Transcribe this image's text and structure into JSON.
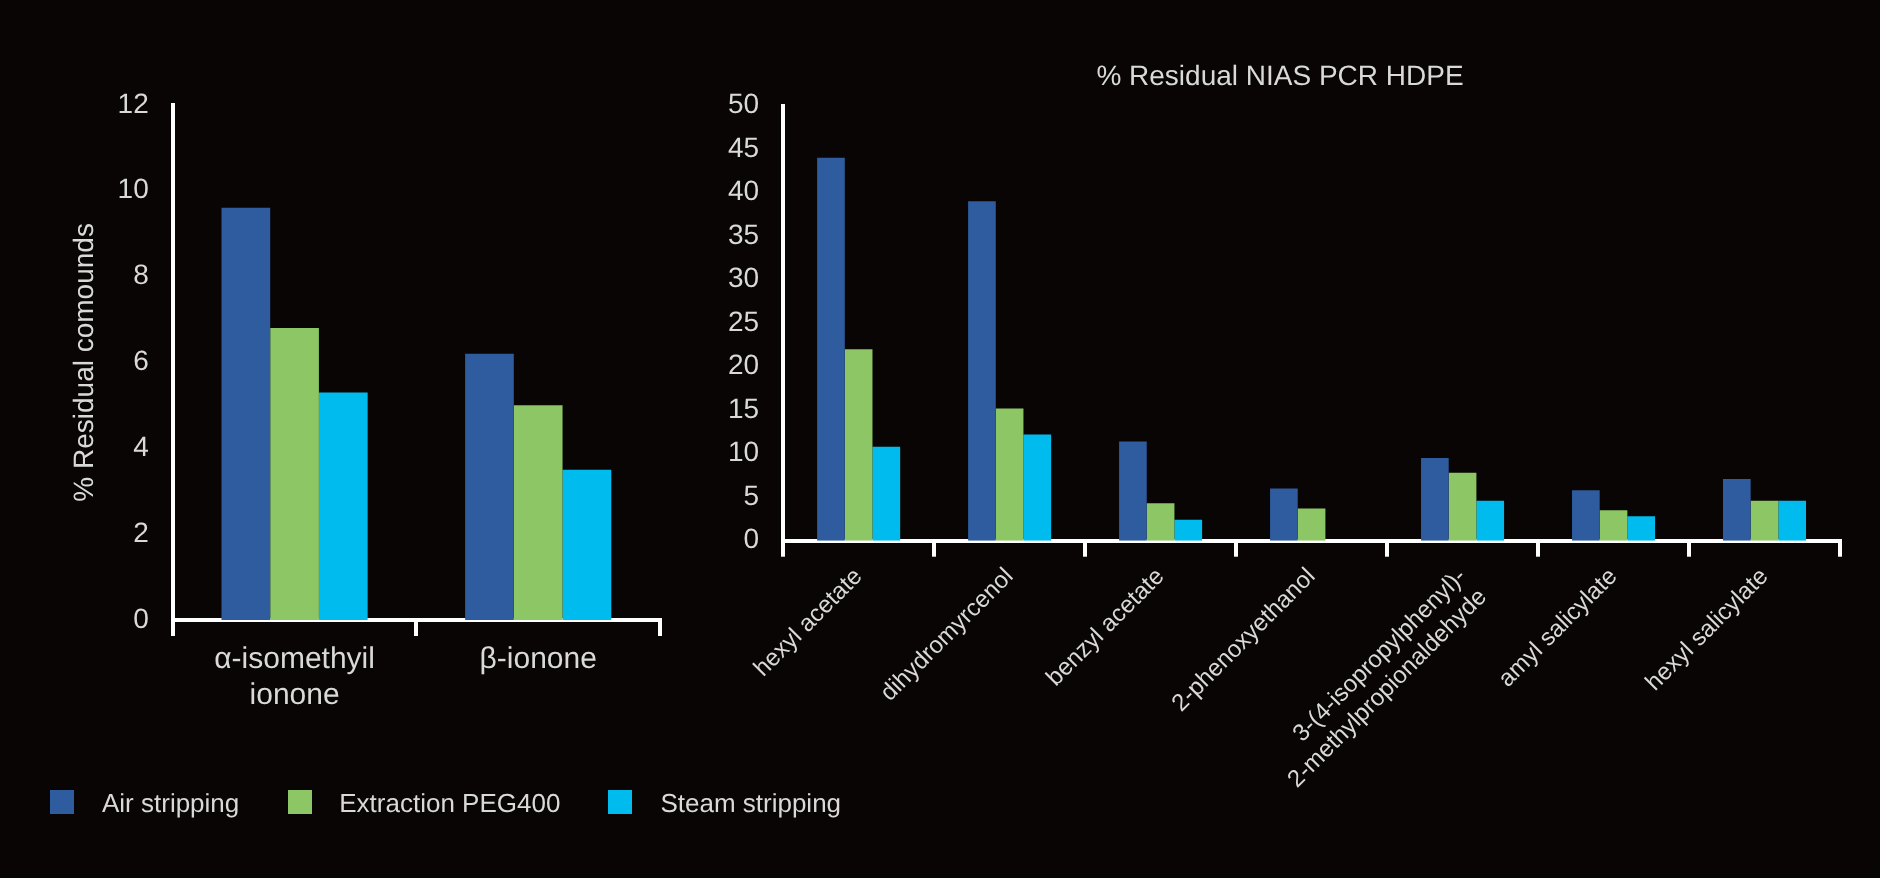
{
  "chart_data": [
    {
      "type": "bar",
      "ylabel": "% Residual comounds",
      "categories": [
        "α-isomethyil\nionone",
        "β-ionone"
      ],
      "series": [
        {
          "name": "Air stripping",
          "color": "#2e5c9e",
          "values": [
            9.6,
            6.2
          ]
        },
        {
          "name": "Extraction PEG400",
          "color": "#8cc665",
          "values": [
            6.8,
            5.0
          ]
        },
        {
          "name": "Steam stripping",
          "color": "#00bcee",
          "values": [
            5.3,
            3.5
          ]
        }
      ],
      "ylim": [
        0,
        12
      ],
      "yticks": [
        0,
        2,
        4,
        6,
        8,
        10,
        12
      ],
      "grid": false,
      "legend": "bottom"
    },
    {
      "type": "bar",
      "title": "% Residual NIAS PCR HDPE",
      "categories": [
        "hexyl acetate",
        "dihydromyrcenol",
        "benzyl acetate",
        "2-phenoxyethanol",
        "3-(4-isopropylphenyl)-\n2-methylpropionaldehyde",
        "amyl salicylate",
        "hexyl salicylate"
      ],
      "series": [
        {
          "color": "#2e5c9e",
          "values": [
            44,
            39,
            11.4,
            6.0,
            9.5,
            5.8,
            7.1
          ]
        },
        {
          "color": "#8cc665",
          "values": [
            22,
            15.2,
            4.3,
            3.7,
            7.8,
            3.5,
            4.6
          ]
        },
        {
          "color": "#00bcee",
          "values": [
            10.8,
            12.2,
            2.4,
            null,
            4.6,
            2.8,
            4.6
          ]
        }
      ],
      "ylim": [
        0,
        50
      ],
      "yticks": [
        0,
        5,
        10,
        15,
        20,
        25,
        30,
        35,
        40,
        45,
        50
      ],
      "grid": false,
      "legend": false
    }
  ]
}
